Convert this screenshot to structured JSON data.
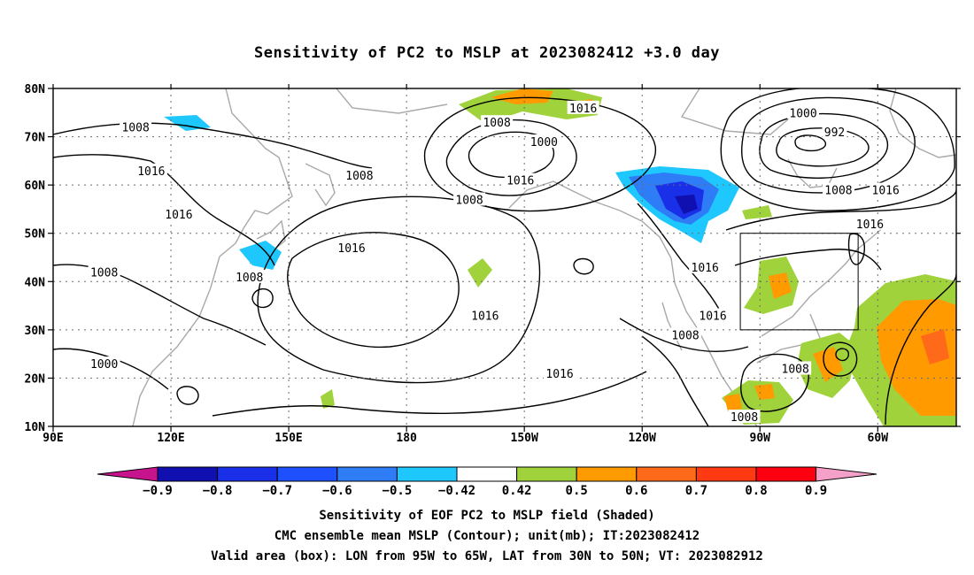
{
  "title": "Sensitivity of PC2 to MSLP at 2023082412 +3.0 day",
  "map": {
    "lon_labels": [
      "90E",
      "120E",
      "150E",
      "180",
      "150W",
      "120W",
      "90W",
      "60W"
    ],
    "lat_labels": [
      "80N",
      "70N",
      "60N",
      "50N",
      "40N",
      "30N",
      "20N",
      "10N"
    ],
    "contour_labels": [
      {
        "text": "1008",
        "lon": 111,
        "lat": 72
      },
      {
        "text": "1016",
        "lon": 115,
        "lat": 63
      },
      {
        "text": "1016",
        "lon": 122,
        "lat": 54
      },
      {
        "text": "1008",
        "lon": 103,
        "lat": 42
      },
      {
        "text": "1008",
        "lon": 140,
        "lat": 41
      },
      {
        "text": "1000",
        "lon": 103,
        "lat": 23
      },
      {
        "text": "1008",
        "lon": 168,
        "lat": 62
      },
      {
        "text": "1016",
        "lon": 166,
        "lat": 47
      },
      {
        "text": "1008",
        "lon": 203,
        "lat": 73
      },
      {
        "text": "1000",
        "lon": 215,
        "lat": 69
      },
      {
        "text": "1016",
        "lon": 225,
        "lat": 76
      },
      {
        "text": "1016",
        "lon": 209,
        "lat": 61
      },
      {
        "text": "1008",
        "lon": 196,
        "lat": 57
      },
      {
        "text": "1016",
        "lon": 200,
        "lat": 33
      },
      {
        "text": "1016",
        "lon": 219,
        "lat": 21
      },
      {
        "text": "1016",
        "lon": 256,
        "lat": 43
      },
      {
        "text": "1016",
        "lon": 258,
        "lat": 33
      },
      {
        "text": "1008",
        "lon": 251,
        "lat": 29
      },
      {
        "text": "1000",
        "lon": 281,
        "lat": 75
      },
      {
        "text": "992",
        "lon": 289,
        "lat": 71
      },
      {
        "text": "1008",
        "lon": 290,
        "lat": 59
      },
      {
        "text": "1016",
        "lon": 302,
        "lat": 59
      },
      {
        "text": "1016",
        "lon": 298,
        "lat": 52
      },
      {
        "text": "1008",
        "lon": 279,
        "lat": 22
      },
      {
        "text": "1008",
        "lon": 266,
        "lat": 12
      }
    ],
    "valid_box": {
      "lon_min": 265,
      "lon_max": 295,
      "lat_min": 30,
      "lat_max": 50
    }
  },
  "colorbar": {
    "labels": [
      "−0.9",
      "−0.8",
      "−0.7",
      "−0.6",
      "−0.5",
      "−0.42",
      "0.42",
      "0.5",
      "0.6",
      "0.7",
      "0.8",
      "0.9"
    ],
    "colors": [
      "#1010b0",
      "#1a30e8",
      "#1f50ff",
      "#2e7cf6",
      "#1ec8ff",
      "#ffffff",
      "#a0d23c",
      "#ff9a00",
      "#ff6a1a",
      "#ff3a12",
      "#ff0010"
    ],
    "low_end_color": "#c8148c",
    "high_end_color": "#f5a0c8"
  },
  "captions": {
    "line1": "Sensitivity of EOF PC2 to MSLP field (Shaded)",
    "line2": "CMC ensemble mean MSLP (Contour); unit(mb); IT:2023082412",
    "line3": "Valid area (box): LON from 95W to 65W, LAT from 30N to 50N; VT: 2023082912"
  }
}
